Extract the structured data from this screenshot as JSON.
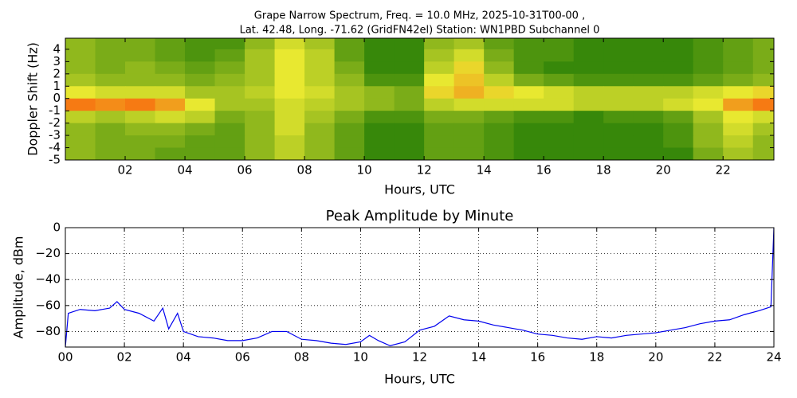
{
  "chart_data": [
    {
      "type": "heatmap",
      "title": [
        "Grape Narrow Spectrum, Freq. = 10.0 MHz, 2025-10-31T00-00 ,",
        "Lat.  42.48, Long. -71.62 (GridFN42el) Station: WN1PBD Subchannel 0"
      ],
      "xlabel": "Hours, UTC",
      "ylabel": "Doppler Shift (Hz)",
      "xlim": [
        0,
        23.7
      ],
      "ylim": [
        -5,
        4.9
      ],
      "xticks": [
        {
          "value": 2,
          "label": "02"
        },
        {
          "value": 4,
          "label": "04"
        },
        {
          "value": 6,
          "label": "06"
        },
        {
          "value": 8,
          "label": "08"
        },
        {
          "value": 10,
          "label": "10"
        },
        {
          "value": 12,
          "label": "12"
        },
        {
          "value": 14,
          "label": "14"
        },
        {
          "value": 16,
          "label": "16"
        },
        {
          "value": 18,
          "label": "18"
        },
        {
          "value": 20,
          "label": "20"
        },
        {
          "value": 22,
          "label": "22"
        }
      ],
      "yticks": [
        4,
        3,
        2,
        1,
        0,
        -1,
        -2,
        -3,
        -4,
        -5
      ],
      "grid": false,
      "zlim": [
        0,
        1
      ],
      "colormap": [
        "#0b7000",
        "#e8e830",
        "#ff3000"
      ],
      "x": [
        0.5,
        1.5,
        2.5,
        3.5,
        4.5,
        5.5,
        6.5,
        7.5,
        8.5,
        9.5,
        10.5,
        11.5,
        12.5,
        13.5,
        14.5,
        15.5,
        16.5,
        17.5,
        18.5,
        19.5,
        20.5,
        21.5,
        22.5,
        23.5
      ],
      "y": [
        4.5,
        3.5,
        2.5,
        1.5,
        0.5,
        -0.5,
        -1.5,
        -2.5,
        -3.5,
        -4.5
      ],
      "z": [
        [
          0.3,
          0.25,
          0.25,
          0.2,
          0.15,
          0.15,
          0.3,
          0.45,
          0.35,
          0.2,
          0.1,
          0.1,
          0.3,
          0.35,
          0.2,
          0.15,
          0.15,
          0.1,
          0.1,
          0.1,
          0.1,
          0.15,
          0.2,
          0.25
        ],
        [
          0.3,
          0.25,
          0.25,
          0.2,
          0.15,
          0.2,
          0.35,
          0.5,
          0.4,
          0.2,
          0.1,
          0.1,
          0.35,
          0.45,
          0.25,
          0.15,
          0.15,
          0.1,
          0.1,
          0.1,
          0.1,
          0.15,
          0.2,
          0.25
        ],
        [
          0.3,
          0.25,
          0.3,
          0.25,
          0.2,
          0.25,
          0.35,
          0.5,
          0.4,
          0.25,
          0.1,
          0.1,
          0.4,
          0.55,
          0.3,
          0.15,
          0.1,
          0.1,
          0.1,
          0.1,
          0.1,
          0.15,
          0.2,
          0.25
        ],
        [
          0.35,
          0.3,
          0.3,
          0.3,
          0.25,
          0.3,
          0.35,
          0.5,
          0.4,
          0.3,
          0.15,
          0.15,
          0.5,
          0.6,
          0.4,
          0.25,
          0.2,
          0.15,
          0.15,
          0.15,
          0.15,
          0.2,
          0.25,
          0.3
        ],
        [
          0.5,
          0.45,
          0.45,
          0.45,
          0.35,
          0.35,
          0.4,
          0.5,
          0.45,
          0.35,
          0.3,
          0.25,
          0.55,
          0.65,
          0.55,
          0.5,
          0.45,
          0.4,
          0.4,
          0.4,
          0.4,
          0.45,
          0.5,
          0.55
        ],
        [
          0.8,
          0.75,
          0.8,
          0.7,
          0.5,
          0.35,
          0.35,
          0.45,
          0.4,
          0.35,
          0.3,
          0.25,
          0.4,
          0.45,
          0.45,
          0.45,
          0.45,
          0.4,
          0.4,
          0.4,
          0.45,
          0.5,
          0.7,
          0.8
        ],
        [
          0.4,
          0.35,
          0.4,
          0.45,
          0.4,
          0.25,
          0.3,
          0.45,
          0.35,
          0.25,
          0.15,
          0.15,
          0.25,
          0.25,
          0.2,
          0.15,
          0.15,
          0.1,
          0.15,
          0.15,
          0.2,
          0.35,
          0.5,
          0.45
        ],
        [
          0.3,
          0.25,
          0.3,
          0.3,
          0.25,
          0.2,
          0.3,
          0.45,
          0.3,
          0.2,
          0.1,
          0.1,
          0.2,
          0.2,
          0.15,
          0.1,
          0.1,
          0.1,
          0.1,
          0.1,
          0.15,
          0.3,
          0.45,
          0.35
        ],
        [
          0.3,
          0.25,
          0.25,
          0.25,
          0.2,
          0.2,
          0.3,
          0.4,
          0.3,
          0.2,
          0.1,
          0.1,
          0.2,
          0.2,
          0.15,
          0.1,
          0.1,
          0.1,
          0.1,
          0.1,
          0.15,
          0.3,
          0.4,
          0.3
        ],
        [
          0.3,
          0.25,
          0.25,
          0.2,
          0.2,
          0.2,
          0.3,
          0.4,
          0.3,
          0.2,
          0.1,
          0.1,
          0.2,
          0.2,
          0.15,
          0.1,
          0.1,
          0.1,
          0.1,
          0.1,
          0.1,
          0.25,
          0.35,
          0.3
        ]
      ]
    },
    {
      "type": "line",
      "title": "Peak Amplitude by Minute",
      "xlabel": "Hours, UTC",
      "ylabel": "Amplitude, dBm",
      "xlim": [
        0,
        24
      ],
      "ylim": [
        -92,
        0
      ],
      "xticks": [
        {
          "value": 0,
          "label": "00"
        },
        {
          "value": 2,
          "label": "02"
        },
        {
          "value": 4,
          "label": "04"
        },
        {
          "value": 6,
          "label": "06"
        },
        {
          "value": 8,
          "label": "08"
        },
        {
          "value": 10,
          "label": "10"
        },
        {
          "value": 12,
          "label": "12"
        },
        {
          "value": 14,
          "label": "14"
        },
        {
          "value": 16,
          "label": "16"
        },
        {
          "value": 18,
          "label": "18"
        },
        {
          "value": 20,
          "label": "20"
        },
        {
          "value": 22,
          "label": "22"
        },
        {
          "value": 24,
          "label": "24"
        }
      ],
      "yticks": [
        0,
        {
          "value": -20,
          "label": "−20"
        },
        {
          "value": -40,
          "label": "−40"
        },
        {
          "value": -60,
          "label": "−60"
        },
        {
          "value": -80,
          "label": "−80"
        }
      ],
      "grid": true,
      "color": "#0000ee",
      "x": [
        0,
        0.1,
        0.5,
        1,
        1.5,
        1.75,
        2,
        2.5,
        3,
        3.3,
        3.5,
        3.8,
        4,
        4.5,
        5,
        5.5,
        6,
        6.5,
        7,
        7.5,
        8,
        8.5,
        9,
        9.5,
        10,
        10.3,
        10.6,
        11,
        11.5,
        12,
        12.5,
        13,
        13.5,
        14,
        14.5,
        15,
        15.5,
        16,
        16.5,
        17,
        17.5,
        18,
        18.5,
        19,
        19.5,
        20,
        20.5,
        21,
        21.5,
        22,
        22.5,
        23,
        23.5,
        23.9,
        24
      ],
      "values": [
        -92,
        -66,
        -63,
        -64,
        -62,
        -57,
        -63,
        -66,
        -72,
        -62,
        -78,
        -66,
        -80,
        -84,
        -85,
        -87,
        -87,
        -85,
        -80,
        -80,
        -86,
        -87,
        -89,
        -90,
        -88,
        -83,
        -87,
        -91,
        -88,
        -79,
        -76,
        -68,
        -71,
        -72,
        -75,
        -77,
        -79,
        -82,
        -83,
        -85,
        -86,
        -84,
        -85,
        -83,
        -82,
        -81,
        -79,
        -77,
        -74,
        -72,
        -71,
        -67,
        -64,
        -61,
        0
      ]
    }
  ]
}
